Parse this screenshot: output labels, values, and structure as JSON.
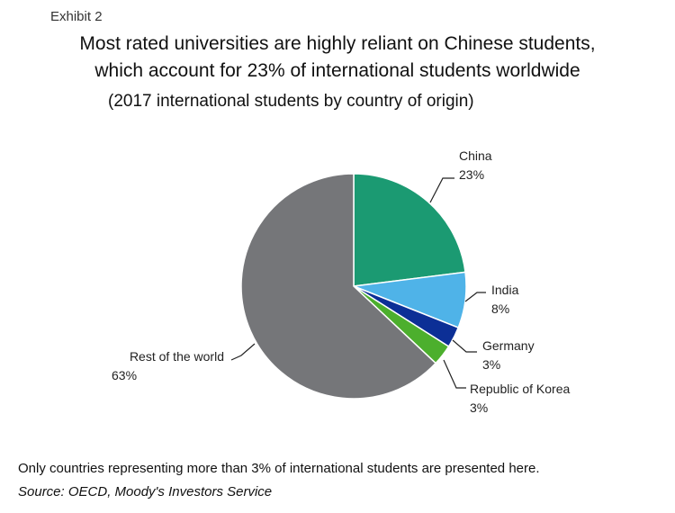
{
  "header": {
    "exhibit": "Exhibit 2",
    "title_line1": "Most rated universities are highly reliant on Chinese students,",
    "title_line2": "which account for 23% of international students worldwide",
    "subtitle": "(2017 international students by country of origin)"
  },
  "chart_data": {
    "type": "pie",
    "title": "Most rated universities are highly reliant on Chinese students, which account for 23% of international students worldwide",
    "subtitle": "(2017 international students by country of origin)",
    "slices": [
      {
        "label": "China",
        "value": 23,
        "value_label": "23%",
        "color": "#1b9a72"
      },
      {
        "label": "India",
        "value": 8,
        "value_label": "8%",
        "color": "#4fb3e8"
      },
      {
        "label": "Germany",
        "value": 3,
        "value_label": "3%",
        "color": "#0c2f96"
      },
      {
        "label": "Republic of Korea",
        "value": 3,
        "value_label": "3%",
        "color": "#4caf2d"
      },
      {
        "label": "Rest of the world",
        "value": 63,
        "value_label": "63%",
        "color": "#757679"
      }
    ],
    "start": "12 o'clock",
    "direction": "clockwise"
  },
  "footer": {
    "note": "Only countries representing more than 3% of international students are presented here.",
    "source": "Source: OECD, Moody's Investors Service"
  }
}
